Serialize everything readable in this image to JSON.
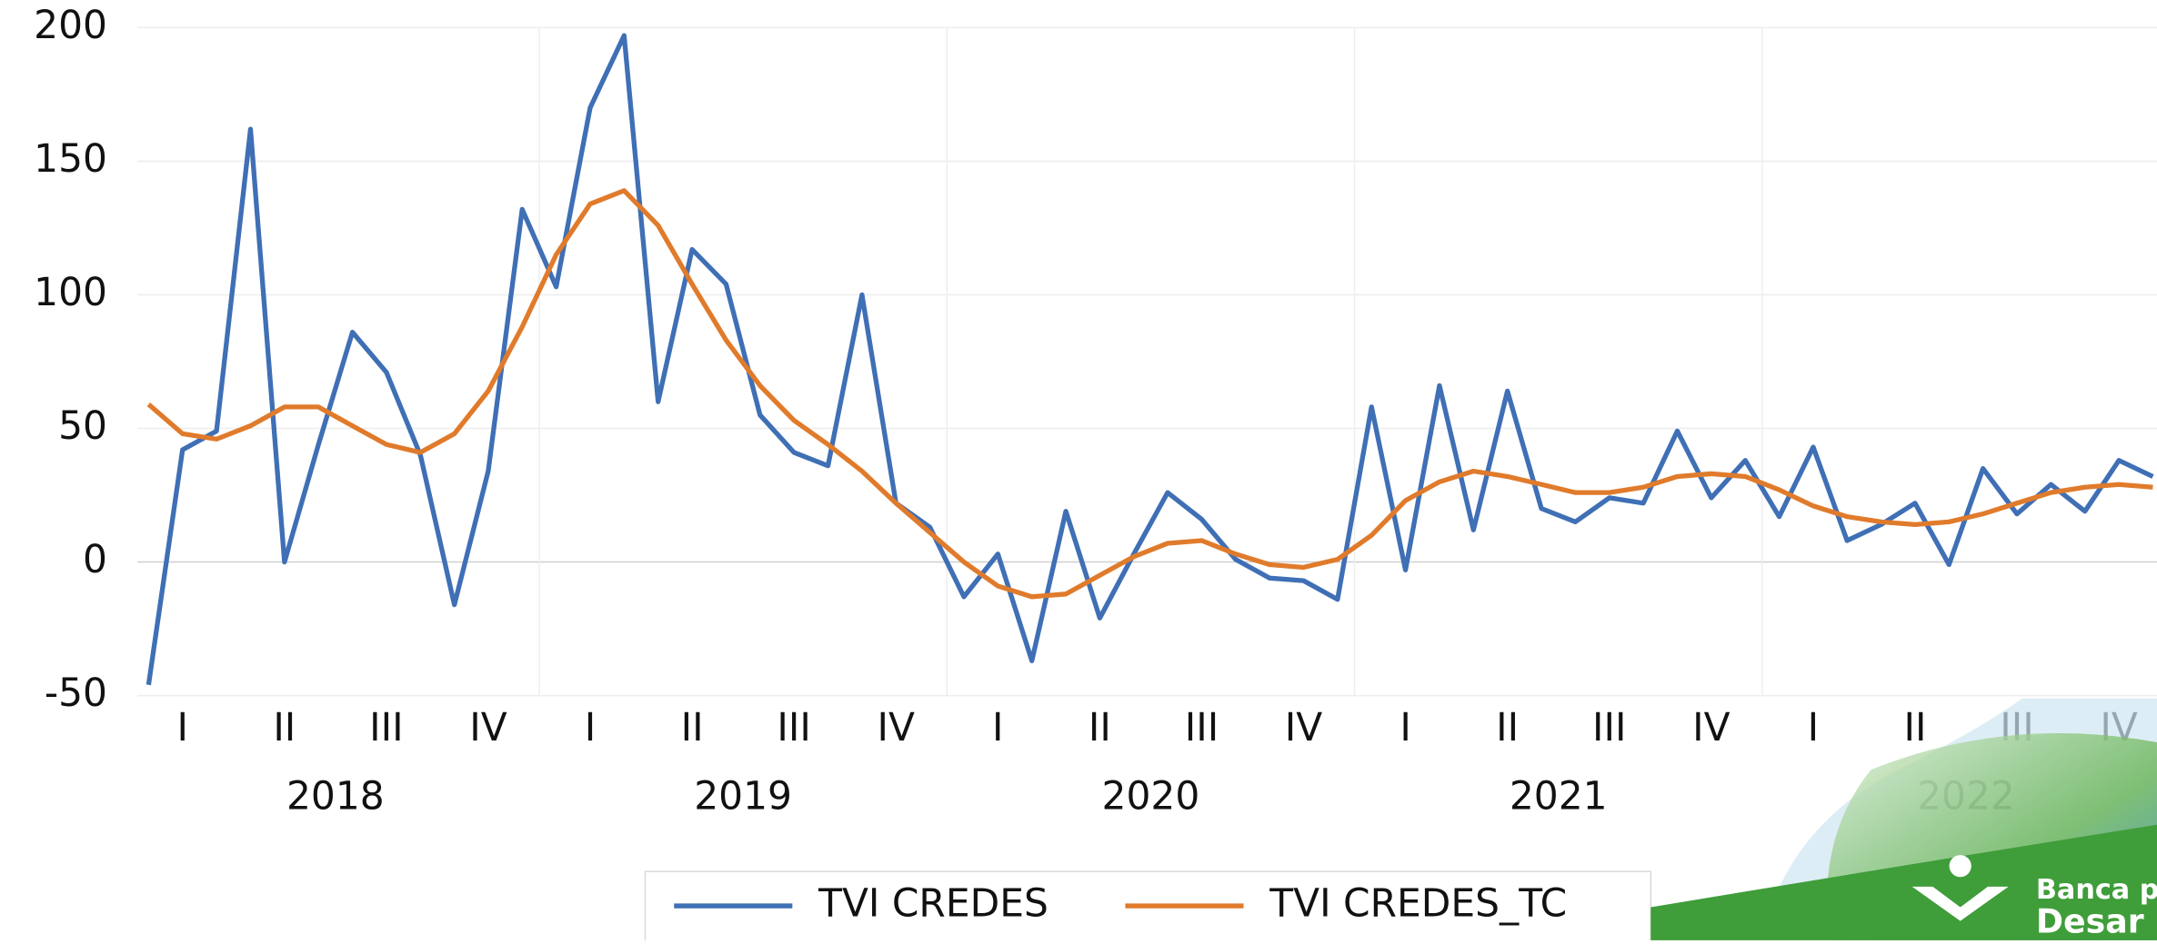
{
  "chart_data": {
    "type": "line",
    "categories": [
      null,
      "I",
      null,
      null,
      "II",
      null,
      null,
      "III",
      null,
      null,
      "IV",
      null,
      null,
      "I",
      null,
      null,
      "II",
      null,
      null,
      "III",
      null,
      null,
      "IV",
      null,
      null,
      "I",
      null,
      null,
      "II",
      null,
      null,
      "III",
      null,
      null,
      "IV",
      null,
      null,
      "I",
      null,
      null,
      "II",
      null,
      null,
      "III",
      null,
      null,
      "IV",
      null,
      null,
      "I",
      null,
      null,
      "II",
      null,
      null,
      "III",
      null,
      null,
      "IV",
      null
    ],
    "years": [
      "2018",
      "2019",
      "2020",
      "2021",
      "2022"
    ],
    "series": [
      {
        "name": "TVI CREDES",
        "color": "#3f6fb5",
        "values": [
          -46,
          42,
          49,
          162,
          0,
          44,
          86,
          71,
          40,
          -16,
          34,
          132,
          103,
          170,
          197,
          60,
          117,
          104,
          55,
          41,
          36,
          100,
          22,
          13,
          -13,
          3,
          -37,
          19,
          -21,
          3,
          26,
          16,
          1,
          -6,
          -7,
          -14,
          58,
          -3,
          66,
          12,
          64,
          20,
          15,
          24,
          22,
          49,
          24,
          38,
          17,
          43,
          8,
          14,
          22,
          -1,
          35,
          18,
          29,
          19,
          38,
          32
        ]
      },
      {
        "name": "TVI CREDES_TC",
        "color": "#e07b2c",
        "values": [
          59,
          48,
          46,
          51,
          58,
          58,
          51,
          44,
          41,
          48,
          64,
          88,
          115,
          134,
          139,
          126,
          104,
          83,
          66,
          53,
          44,
          34,
          22,
          11,
          0,
          -9,
          -13,
          -12,
          -5,
          2,
          7,
          8,
          3,
          -1,
          -2,
          1,
          10,
          23,
          30,
          34,
          32,
          29,
          26,
          26,
          28,
          32,
          33,
          32,
          27,
          21,
          17,
          15,
          14,
          15,
          18,
          22,
          26,
          28,
          29,
          28
        ]
      }
    ],
    "ylim": [
      -50,
      200
    ],
    "yticks": [
      -50,
      0,
      50,
      100,
      150,
      200
    ],
    "grid": true,
    "legend": "bottom"
  },
  "watermark": {
    "line1": "Banca p",
    "line2": "Desar"
  }
}
